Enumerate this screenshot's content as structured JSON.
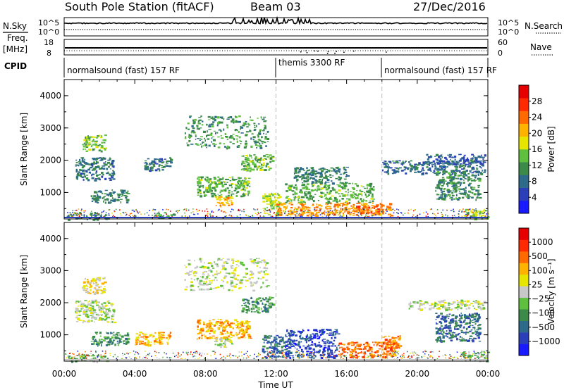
{
  "header": {
    "station": "South Pole Station (fitACF)",
    "beam": "Beam 03",
    "date": "27/Dec/2016"
  },
  "top_panels": {
    "nsky_label": "N.Sky",
    "nsearch_label": "N.Search",
    "power_ticks": [
      "10^5",
      "10^0"
    ],
    "freq_label_line1": "Freq.",
    "freq_label_line2": "[MHz]",
    "freq_ticks": [
      "18",
      "8"
    ],
    "nave_label": "Nave",
    "nave_ticks": [
      "60",
      "0"
    ],
    "cpid_label": "CPID",
    "cpid_segments": [
      {
        "label": "normalsound (fast) 157 RF",
        "start_hour": 0,
        "end_hour": 12
      },
      {
        "label": "themis 3300 RF",
        "start_hour": 12,
        "end_hour": 18
      },
      {
        "label": "normalsound (fast) 157 RF",
        "start_hour": 18,
        "end_hour": 24
      }
    ]
  },
  "chart_data": [
    {
      "type": "heatmap",
      "ylabel": "Slant Range [km]",
      "xlabel": "Time UT",
      "x_tick_labels": [
        "00:00",
        "04:00",
        "08:00",
        "12:00",
        "16:00",
        "20:00",
        "00:00"
      ],
      "x_ticks_hours": [
        0,
        4,
        8,
        12,
        16,
        20,
        24
      ],
      "xlim_hours": [
        0,
        24
      ],
      "y_ticks": [
        1000,
        2000,
        3000,
        4000
      ],
      "ylim": [
        180,
        4500
      ],
      "colorbar_label": "Power [dB]",
      "colorbar_ticks": [
        4,
        8,
        12,
        16,
        20,
        24,
        28
      ],
      "colorbar_range": [
        0,
        32
      ],
      "colors": [
        "#1a1aff",
        "#2b3fb8",
        "#2e6a8a",
        "#3b8a4a",
        "#5fbf3f",
        "#e6e600",
        "#ffb300",
        "#ff6a00",
        "#ff2a00",
        "#e60000"
      ],
      "regions": [
        {
          "t0": 0.1,
          "t1": 2.5,
          "r0": 180,
          "r1": 400,
          "value": 10
        },
        {
          "t0": 0.6,
          "t1": 2.8,
          "r0": 1400,
          "r1": 2100,
          "value": 8
        },
        {
          "t0": 1.0,
          "t1": 2.3,
          "r0": 2300,
          "r1": 2800,
          "value": 14
        },
        {
          "t0": 1.5,
          "t1": 3.6,
          "r0": 700,
          "r1": 1100,
          "value": 9
        },
        {
          "t0": 4.5,
          "t1": 6.0,
          "r0": 1700,
          "r1": 2100,
          "value": 7
        },
        {
          "t0": 5.0,
          "t1": 6.2,
          "r0": 200,
          "r1": 400,
          "value": 12
        },
        {
          "t0": 6.8,
          "t1": 11.5,
          "r0": 2400,
          "r1": 3400,
          "value": 11
        },
        {
          "t0": 7.5,
          "t1": 10.5,
          "r0": 900,
          "r1": 1500,
          "value": 13
        },
        {
          "t0": 8.5,
          "t1": 9.5,
          "r0": 600,
          "r1": 900,
          "value": 21
        },
        {
          "t0": 10.0,
          "t1": 11.8,
          "r0": 1700,
          "r1": 2200,
          "value": 14
        },
        {
          "t0": 11.2,
          "t1": 12.2,
          "r0": 300,
          "r1": 1000,
          "value": 16
        },
        {
          "t0": 12.0,
          "t1": 18.5,
          "r0": 300,
          "r1": 700,
          "value": 23
        },
        {
          "t0": 12.5,
          "t1": 17.5,
          "r0": 700,
          "r1": 1300,
          "value": 13
        },
        {
          "t0": 13.0,
          "t1": 16.0,
          "r0": 1300,
          "r1": 1800,
          "value": 9
        },
        {
          "t0": 16.5,
          "t1": 18.0,
          "r0": 350,
          "r1": 600,
          "value": 26
        },
        {
          "t0": 18.0,
          "t1": 23.8,
          "r0": 1600,
          "r1": 2000,
          "value": 7
        },
        {
          "t0": 20.5,
          "t1": 23.8,
          "r0": 1900,
          "r1": 2200,
          "value": 6
        },
        {
          "t0": 21.0,
          "t1": 23.5,
          "r0": 800,
          "r1": 1700,
          "value": 10
        },
        {
          "t0": 22.5,
          "t1": 24.0,
          "r0": 200,
          "r1": 500,
          "value": 15
        }
      ]
    },
    {
      "type": "heatmap",
      "ylabel": "Slant Range [km]",
      "xlabel": "Time UT",
      "x_tick_labels": [
        "00:00",
        "04:00",
        "08:00",
        "12:00",
        "16:00",
        "20:00",
        "00:00"
      ],
      "x_ticks_hours": [
        0,
        4,
        8,
        12,
        16,
        20,
        24
      ],
      "xlim_hours": [
        0,
        24
      ],
      "y_ticks": [
        1000,
        2000,
        3000,
        4000
      ],
      "ylim": [
        180,
        4500
      ],
      "colorbar_label": "Velocity [m s⁻¹]",
      "colorbar_ticks": [
        "1000",
        "500",
        "100",
        "25",
        "−25",
        "−100",
        "−500",
        "−1000"
      ],
      "colors": [
        "#1a1aff",
        "#2b3fb8",
        "#2e6a8a",
        "#3b8a4a",
        "#5fbf3f",
        "#c8c8c8",
        "#e6e600",
        "#ffb300",
        "#ff6a00",
        "#ff2a00",
        "#e60000"
      ],
      "regions": [
        {
          "t0": 0.1,
          "t1": 2.5,
          "r0": 180,
          "r1": 400,
          "value": 4
        },
        {
          "t0": 0.6,
          "t1": 2.8,
          "r0": 1400,
          "r1": 2100,
          "value": 5
        },
        {
          "t0": 1.0,
          "t1": 2.3,
          "r0": 2300,
          "r1": 2800,
          "value": 6
        },
        {
          "t0": 1.5,
          "t1": 3.6,
          "r0": 700,
          "r1": 1100,
          "value": 3
        },
        {
          "t0": 4.0,
          "t1": 6.0,
          "r0": 700,
          "r1": 1100,
          "value": 7
        },
        {
          "t0": 6.8,
          "t1": 11.5,
          "r0": 2400,
          "r1": 3400,
          "value": 5
        },
        {
          "t0": 7.5,
          "t1": 10.5,
          "r0": 900,
          "r1": 1500,
          "value": 7
        },
        {
          "t0": 8.5,
          "t1": 9.5,
          "r0": 600,
          "r1": 900,
          "value": 5
        },
        {
          "t0": 10.0,
          "t1": 11.8,
          "r0": 1700,
          "r1": 2200,
          "value": 3
        },
        {
          "t0": 11.2,
          "t1": 12.8,
          "r0": 300,
          "r1": 1000,
          "value": 2
        },
        {
          "t0": 12.5,
          "t1": 15.5,
          "r0": 300,
          "r1": 1200,
          "value": 1
        },
        {
          "t0": 15.5,
          "t1": 18.8,
          "r0": 300,
          "r1": 800,
          "value": 8
        },
        {
          "t0": 18.0,
          "t1": 19.0,
          "r0": 600,
          "r1": 1000,
          "value": 8
        },
        {
          "t0": 19.5,
          "t1": 23.8,
          "r0": 1800,
          "r1": 2100,
          "value": 5
        },
        {
          "t0": 21.0,
          "t1": 23.5,
          "r0": 800,
          "r1": 1700,
          "value": 2
        },
        {
          "t0": 22.5,
          "t1": 24.0,
          "r0": 200,
          "r1": 500,
          "value": 4
        }
      ]
    }
  ]
}
